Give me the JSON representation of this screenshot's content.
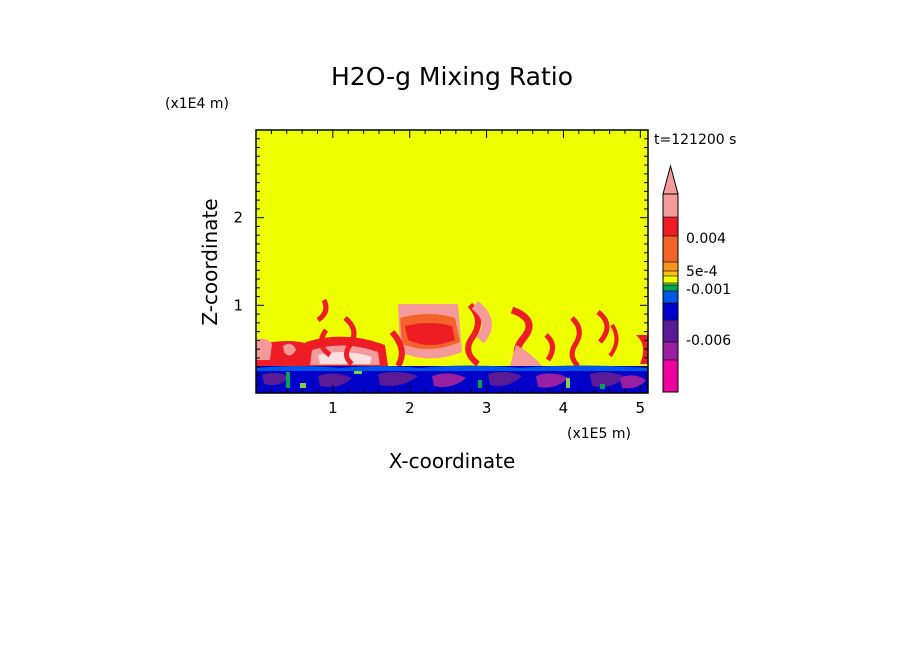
{
  "chart_data": {
    "type": "heatmap",
    "title": "H2O-g Mixing Ratio",
    "time_label": "t=121200 s",
    "xlabel": "X-coordinate",
    "ylabel": "Z-coordinate",
    "x_unit": "(x1E5 m)",
    "y_unit": "(x1E4 m)",
    "xlim": [
      0,
      5.1
    ],
    "ylim": [
      0,
      3.0
    ],
    "x_ticks": [
      1,
      2,
      3,
      4,
      5
    ],
    "y_ticks": [
      1,
      2
    ],
    "x_tick_labels": [
      "1",
      "2",
      "3",
      "4",
      "5"
    ],
    "y_tick_labels": [
      "1",
      "2"
    ],
    "field": {
      "background": {
        "value_range": "~0",
        "color": "#eeff00"
      },
      "surface_layer": {
        "z_top": 0.3,
        "description_value_range": "negative"
      },
      "plume_top": 1.0
    },
    "colorbar": {
      "levels_high_to_low": [
        "#f59a9a",
        "#ee1c24",
        "#f4642a",
        "#f7941d",
        "#ffc20e",
        "#eeff00",
        "#7cd24d",
        "#00a651",
        "#0054e6",
        "#0000c8",
        "#5a1a96",
        "#9a1ea0",
        "#ec00a0"
      ],
      "labels": [
        {
          "text": "0.004",
          "value": 0.004
        },
        {
          "text": "5e-4",
          "value": 0.0005
        },
        {
          "text": "-0.001",
          "value": -0.001
        },
        {
          "text": "-0.006",
          "value": -0.006
        }
      ],
      "extend": "max"
    }
  }
}
